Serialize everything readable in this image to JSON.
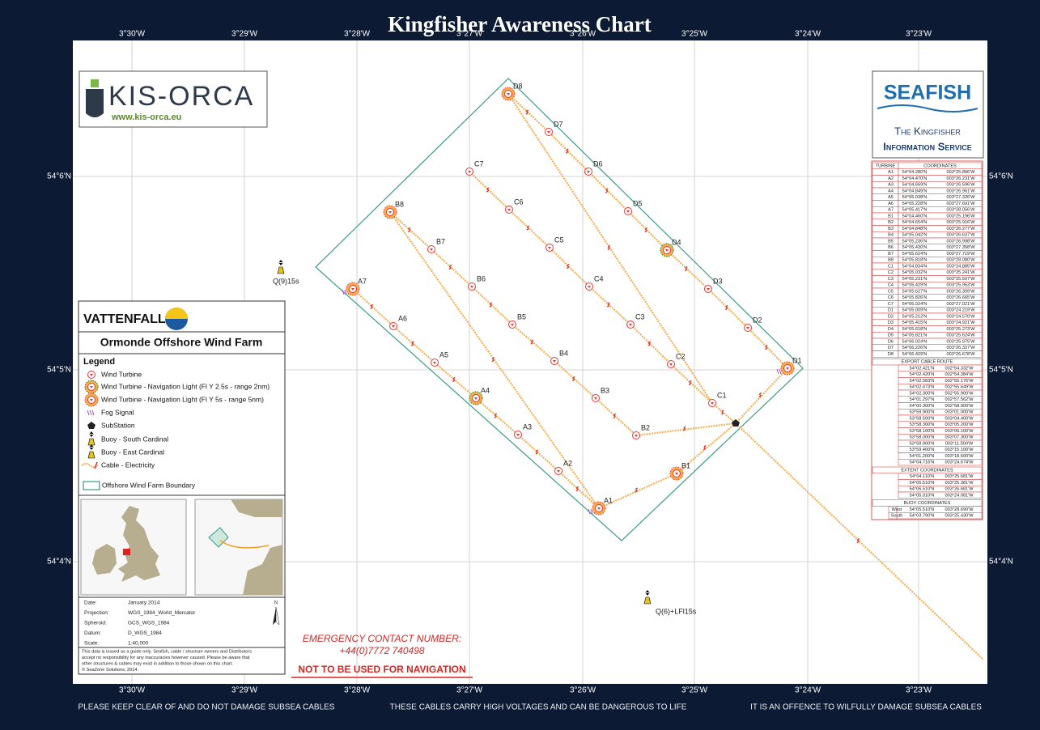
{
  "title": "Kingfisher Awareness Chart",
  "longitude_labels": [
    "3°30'W",
    "3°29'W",
    "3°28'W",
    "3°27'W",
    "3°26'W",
    "3°25'W",
    "3°24'W",
    "3°23'W"
  ],
  "latitude_labels": [
    "54°6'N",
    "54°5'N",
    "54°4'N"
  ],
  "kisorca": {
    "name": "KIS-ORCA",
    "url": "www.kis-orca.eu"
  },
  "seafish": {
    "name": "SEAFISH",
    "line1": "The Kingfisher",
    "line2": "Information Service"
  },
  "turbines": [
    {
      "label": "A1",
      "lat": "54°04.280'N",
      "lon": "003°25.866'W"
    },
    {
      "label": "A2",
      "lat": "54°04.470'N",
      "lon": "003°26.231'W"
    },
    {
      "label": "A3",
      "lat": "54°04.659'N",
      "lon": "003°26.596'W"
    },
    {
      "label": "A4",
      "lat": "54°04.849'N",
      "lon": "003°26.961'W"
    },
    {
      "label": "A5",
      "lat": "54°05.038'N",
      "lon": "003°27.326'W"
    },
    {
      "label": "A6",
      "lat": "54°05.228'N",
      "lon": "003°27.691'W"
    },
    {
      "label": "A7",
      "lat": "54°05.417'N",
      "lon": "003°28.056'W"
    },
    {
      "label": "B1",
      "lat": "54°04.460'N",
      "lon": "003°25.196'W"
    },
    {
      "label": "B2",
      "lat": "54°04.654'N",
      "lon": "003°25.916'W"
    },
    {
      "label": "B3",
      "lat": "54°04.848'N",
      "lon": "003°26.277'W"
    },
    {
      "label": "B4",
      "lat": "54°05.042'N",
      "lon": "003°26.637'W"
    },
    {
      "label": "B5",
      "lat": "54°05.236'N",
      "lon": "003°26.998'W"
    },
    {
      "label": "B6",
      "lat": "54°05.430'N",
      "lon": "003°27.358'W"
    },
    {
      "label": "B7",
      "lat": "54°05.624'N",
      "lon": "003°27.719'W"
    },
    {
      "label": "B8",
      "lat": "54°05.818'N",
      "lon": "003°28.080'W"
    },
    {
      "label": "C1",
      "lat": "54°04.834'N",
      "lon": "003°24.885'W"
    },
    {
      "label": "C2",
      "lat": "54°05.032'N",
      "lon": "003°25.241'W"
    },
    {
      "label": "C3",
      "lat": "54°05.231'N",
      "lon": "003°25.597'W"
    },
    {
      "label": "C4",
      "lat": "54°05.429'N",
      "lon": "003°25.953'W"
    },
    {
      "label": "C5",
      "lat": "54°05.627'N",
      "lon": "003°26.309'W"
    },
    {
      "label": "C6",
      "lat": "54°05.826'N",
      "lon": "003°26.665'W"
    },
    {
      "label": "C7",
      "lat": "54°06.024'N",
      "lon": "003°27.021'W"
    },
    {
      "label": "D1",
      "lat": "54°05.009'N",
      "lon": "003°24.219'W"
    },
    {
      "label": "D2",
      "lat": "54°05.212'N",
      "lon": "003°24.570'W"
    },
    {
      "label": "D3",
      "lat": "54°05.415'N",
      "lon": "003°24.921'W"
    },
    {
      "label": "D4",
      "lat": "54°05.618'N",
      "lon": "003°25.273'W"
    },
    {
      "label": "D5",
      "lat": "54°05.821'N",
      "lon": "003°25.624'W"
    },
    {
      "label": "D6",
      "lat": "54°06.024'N",
      "lon": "003°25.975'W"
    },
    {
      "label": "D7",
      "lat": "54°06.226'N",
      "lon": "003°26.327'W"
    },
    {
      "label": "D8",
      "lat": "54°06.429'N",
      "lon": "003°26.678'W"
    }
  ],
  "table_headers": {
    "turbine": "TURBINE",
    "coordinates": "COORDINATES",
    "export": "EXPORT CABLE ROUTE",
    "extent": "EXTENT COORDINATES",
    "buoy": "BUOY COORDINATES"
  },
  "export_cable": [
    {
      "lat": "54°02.421'N",
      "lon": "002°54.332'W"
    },
    {
      "lat": "54°02.420'N",
      "lon": "002°54.384'W"
    },
    {
      "lat": "54°02.583'N",
      "lon": "002°55.176'W"
    },
    {
      "lat": "54°02.473'N",
      "lon": "002°55.649'W"
    },
    {
      "lat": "54°02.300'N",
      "lon": "002°55.900'W"
    },
    {
      "lat": "54°01.297'N",
      "lon": "002°57.562'W"
    },
    {
      "lat": "54°00.300'N",
      "lon": "002°58.900'W"
    },
    {
      "lat": "53°59.900'N",
      "lon": "003°01.000'W"
    },
    {
      "lat": "53°58.500'N",
      "lon": "003°04.400'W"
    },
    {
      "lat": "53°58.300'N",
      "lon": "003°05.200'W"
    },
    {
      "lat": "53°58.100'N",
      "lon": "003°06.100'W"
    },
    {
      "lat": "53°58.000'N",
      "lon": "003°07.300'W"
    },
    {
      "lat": "53°58.900'N",
      "lon": "003°11.500'W"
    },
    {
      "lat": "53°59.400'N",
      "lon": "003°15.100'W"
    },
    {
      "lat": "54°01.200'N",
      "lon": "003°18.500'W"
    },
    {
      "lat": "54°04.716'N",
      "lon": "003°24.674'W"
    }
  ],
  "extent": [
    {
      "lat": "54°04.110'N",
      "lon": "003°25.681'W"
    },
    {
      "lat": "54°05.510'N",
      "lon": "003°25.381'W"
    },
    {
      "lat": "54°06.510'N",
      "lon": "003°26.681'W"
    },
    {
      "lat": "54°05.010'N",
      "lon": "003°24.081'W"
    }
  ],
  "buoys": [
    {
      "name": "West",
      "light": "Q(9)15s",
      "lat": "54°05.510'N",
      "lon": "003°28.690'W"
    },
    {
      "name": "South",
      "light": "Q(6)+LFl15s",
      "lat": "54°03.790'N",
      "lon": "003°25.430'W"
    }
  ],
  "legend": {
    "company": "VATTENFALL",
    "farm": "Ormonde Offshore Wind Farm",
    "title": "Legend",
    "items": [
      "Wind Turbine",
      "Wind Turbine - Navigation Light (Fl Y 2.5s - range 2nm)",
      "Wind Turbine - Navigation Light (Fl Y 5s - range 5nm)",
      "Fog Signal",
      "SubStation",
      "Buoy - South Cardinal",
      "Buoy - East Cardinal",
      "Cable - Electricity",
      "Offshore Wind Farm Boundary"
    ]
  },
  "info": [
    {
      "key": "Date:",
      "value": "January 2014"
    },
    {
      "key": "Projection:",
      "value": "WGS_1984_World_Mercator"
    },
    {
      "key": "Spheroid:",
      "value": "GCS_WGS_1984"
    },
    {
      "key": "Datum:",
      "value": "D_WGS_1984"
    },
    {
      "key": "Scale:",
      "value": "1:40,000"
    }
  ],
  "north": "N",
  "disclaimer": [
    "This data is issued as a guide only.  Seafish, cable / structure owners and Distributors",
    "accept no responsibility for any inaccuracies however caused.  Please be aware that",
    "other structures & cables may exist in addition to those shown on this chart.",
    "© SeaZone Solutions, 2014."
  ],
  "emergency": [
    "EMERGENCY CONTACT NUMBER:",
    "+44(0)7772 740498"
  ],
  "warning": "NOT TO BE USED FOR NAVIGATION",
  "footer": [
    "PLEASE KEEP CLEAR OF AND DO NOT DAMAGE SUBSEA CABLES",
    "THESE CABLES CARRY HIGH VOLTAGES AND CAN BE DANGEROUS TO LIFE",
    "IT IS AN OFFENCE TO WILFULLY DAMAGE SUBSEA CABLES"
  ]
}
